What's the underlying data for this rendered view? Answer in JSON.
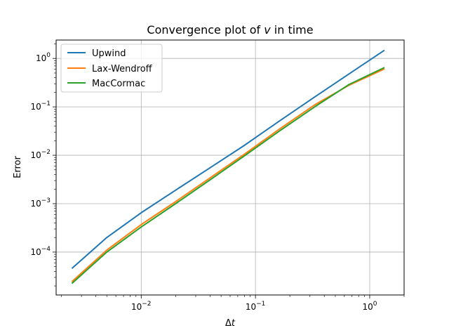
{
  "chart_data": {
    "type": "line",
    "title_prefix": "Convergence plot of ",
    "title_var": "v",
    "title_suffix": " in time",
    "xlabel_prefix": "Δ",
    "xlabel_var": "t",
    "ylabel": "Error",
    "xscale": "log",
    "yscale": "log",
    "xlim": [
      0.0018,
      2.0
    ],
    "ylim": [
      1.3e-05,
      2.4
    ],
    "grid": true,
    "legend_position": "top-left",
    "xticks": [
      {
        "value": 0.01,
        "base": "10",
        "exp": "−2"
      },
      {
        "value": 0.1,
        "base": "10",
        "exp": "−1"
      },
      {
        "value": 1,
        "base": "10",
        "exp": "0"
      }
    ],
    "yticks": [
      {
        "value": 0.0001,
        "base": "10",
        "exp": "−4"
      },
      {
        "value": 0.001,
        "base": "10",
        "exp": "−3"
      },
      {
        "value": 0.01,
        "base": "10",
        "exp": "−2"
      },
      {
        "value": 0.1,
        "base": "10",
        "exp": "−1"
      },
      {
        "value": 1,
        "base": "10",
        "exp": "0"
      }
    ],
    "x": [
      0.0025,
      0.005,
      0.01,
      0.02,
      0.04,
      0.08,
      0.16,
      0.33,
      0.66,
      1.33
    ],
    "series": [
      {
        "name": "Upwind",
        "color": "#1f77b4",
        "values": [
          4.7e-05,
          0.0002,
          0.00065,
          0.0019,
          0.0055,
          0.016,
          0.05,
          0.16,
          0.48,
          1.45
        ]
      },
      {
        "name": "Lax-Wendroff",
        "color": "#ff7f0e",
        "values": [
          2.5e-05,
          0.00011,
          0.00037,
          0.0011,
          0.0034,
          0.0105,
          0.034,
          0.11,
          0.28,
          0.6
        ]
      },
      {
        "name": "MacCormac",
        "color": "#2ca02c",
        "values": [
          2.3e-05,
          0.0001,
          0.00033,
          0.001,
          0.0031,
          0.0097,
          0.031,
          0.1,
          0.29,
          0.64
        ]
      }
    ]
  }
}
